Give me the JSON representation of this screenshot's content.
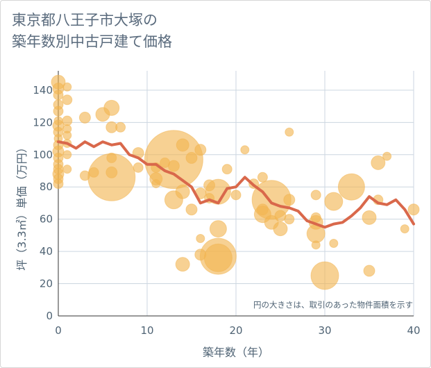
{
  "chart_data": {
    "type": "scatter",
    "title_lines": [
      "東京都八王子市大塚の",
      "築年数別中古戸建て価格"
    ],
    "xlabel": "築年数（年）",
    "ylabel": "坪（3.3㎡）単価（万円）",
    "xlim": [
      0,
      40
    ],
    "ylim": [
      0,
      152
    ],
    "x_ticks": [
      0,
      10,
      20,
      30,
      40
    ],
    "y_ticks": [
      0,
      20,
      40,
      60,
      80,
      100,
      120,
      140
    ],
    "grid": true,
    "note": "円の大きさは、取引のあった物件面積を示す",
    "colors": {
      "bubble": "#f2b450",
      "line": "#d9684b",
      "grid": "#ccd6e0",
      "text": "#4f6374"
    },
    "bubbles": [
      {
        "x": 0,
        "y": 145,
        "s": 10
      },
      {
        "x": 0,
        "y": 141,
        "s": 8
      },
      {
        "x": 0,
        "y": 137,
        "s": 7
      },
      {
        "x": 0,
        "y": 131,
        "s": 7
      },
      {
        "x": 0,
        "y": 127,
        "s": 7
      },
      {
        "x": 0,
        "y": 121,
        "s": 6
      },
      {
        "x": 0,
        "y": 118,
        "s": 8
      },
      {
        "x": 0,
        "y": 114,
        "s": 7
      },
      {
        "x": 0,
        "y": 110,
        "s": 6
      },
      {
        "x": 0,
        "y": 106,
        "s": 7
      },
      {
        "x": 0,
        "y": 102,
        "s": 8
      },
      {
        "x": 0,
        "y": 98,
        "s": 7
      },
      {
        "x": 0,
        "y": 94,
        "s": 7
      },
      {
        "x": 0,
        "y": 91,
        "s": 7
      },
      {
        "x": 0,
        "y": 88,
        "s": 8
      },
      {
        "x": 0,
        "y": 85,
        "s": 7
      },
      {
        "x": 0,
        "y": 82,
        "s": 7
      },
      {
        "x": 1,
        "y": 142,
        "s": 6
      },
      {
        "x": 1,
        "y": 134,
        "s": 7
      },
      {
        "x": 1,
        "y": 121,
        "s": 7
      },
      {
        "x": 1,
        "y": 116,
        "s": 6
      },
      {
        "x": 1,
        "y": 112,
        "s": 6
      },
      {
        "x": 1,
        "y": 107,
        "s": 6
      },
      {
        "x": 1,
        "y": 100,
        "s": 6
      },
      {
        "x": 1,
        "y": 91,
        "s": 6
      },
      {
        "x": 3,
        "y": 123,
        "s": 8
      },
      {
        "x": 3,
        "y": 87,
        "s": 7
      },
      {
        "x": 4,
        "y": 89,
        "s": 7
      },
      {
        "x": 5,
        "y": 125,
        "s": 10
      },
      {
        "x": 6,
        "y": 129,
        "s": 11
      },
      {
        "x": 6,
        "y": 117,
        "s": 8
      },
      {
        "x": 6,
        "y": 98,
        "s": 7
      },
      {
        "x": 6,
        "y": 89,
        "s": 8
      },
      {
        "x": 6,
        "y": 86,
        "s": 34
      },
      {
        "x": 7,
        "y": 117,
        "s": 7
      },
      {
        "x": 9,
        "y": 101,
        "s": 8
      },
      {
        "x": 9,
        "y": 92,
        "s": 7
      },
      {
        "x": 11,
        "y": 92,
        "s": 7
      },
      {
        "x": 11,
        "y": 85,
        "s": 9
      },
      {
        "x": 11,
        "y": 82,
        "s": 6
      },
      {
        "x": 12,
        "y": 95,
        "s": 7
      },
      {
        "x": 13,
        "y": 97,
        "s": 42
      },
      {
        "x": 13,
        "y": 93,
        "s": 8
      },
      {
        "x": 13,
        "y": 72,
        "s": 13
      },
      {
        "x": 14,
        "y": 106,
        "s": 9
      },
      {
        "x": 14,
        "y": 77,
        "s": 10
      },
      {
        "x": 14,
        "y": 32,
        "s": 10
      },
      {
        "x": 15,
        "y": 98,
        "s": 8
      },
      {
        "x": 15,
        "y": 66,
        "s": 8
      },
      {
        "x": 16,
        "y": 103,
        "s": 8
      },
      {
        "x": 16,
        "y": 76,
        "s": 8
      },
      {
        "x": 16,
        "y": 48,
        "s": 6
      },
      {
        "x": 16,
        "y": 38,
        "s": 8
      },
      {
        "x": 17,
        "y": 81,
        "s": 8
      },
      {
        "x": 17,
        "y": 73,
        "s": 7
      },
      {
        "x": 18,
        "y": 77,
        "s": 18
      },
      {
        "x": 18,
        "y": 54,
        "s": 12
      },
      {
        "x": 18,
        "y": 37,
        "s": 26
      },
      {
        "x": 18,
        "y": 36,
        "s": 20
      },
      {
        "x": 19,
        "y": 91,
        "s": 7
      },
      {
        "x": 20,
        "y": 75,
        "s": 7
      },
      {
        "x": 21,
        "y": 103,
        "s": 6
      },
      {
        "x": 22,
        "y": 82,
        "s": 7
      },
      {
        "x": 23,
        "y": 86,
        "s": 7
      },
      {
        "x": 23,
        "y": 66,
        "s": 8
      },
      {
        "x": 23,
        "y": 63,
        "s": 12
      },
      {
        "x": 24,
        "y": 72,
        "s": 28
      },
      {
        "x": 24,
        "y": 58,
        "s": 10
      },
      {
        "x": 25,
        "y": 62,
        "s": 8
      },
      {
        "x": 25,
        "y": 54,
        "s": 10
      },
      {
        "x": 26,
        "y": 114,
        "s": 6
      },
      {
        "x": 26,
        "y": 72,
        "s": 8
      },
      {
        "x": 26,
        "y": 60,
        "s": 7
      },
      {
        "x": 29,
        "y": 75,
        "s": 7
      },
      {
        "x": 29,
        "y": 61,
        "s": 7
      },
      {
        "x": 29,
        "y": 58,
        "s": 10
      },
      {
        "x": 29,
        "y": 51,
        "s": 13
      },
      {
        "x": 29,
        "y": 44,
        "s": 6
      },
      {
        "x": 30,
        "y": 25,
        "s": 20
      },
      {
        "x": 31,
        "y": 71,
        "s": 13
      },
      {
        "x": 31,
        "y": 45,
        "s": 6
      },
      {
        "x": 33,
        "y": 80,
        "s": 19
      },
      {
        "x": 35,
        "y": 61,
        "s": 10
      },
      {
        "x": 35,
        "y": 28,
        "s": 8
      },
      {
        "x": 36,
        "y": 95,
        "s": 10
      },
      {
        "x": 36,
        "y": 72,
        "s": 7
      },
      {
        "x": 37,
        "y": 99,
        "s": 6
      },
      {
        "x": 39,
        "y": 54,
        "s": 6
      },
      {
        "x": 40,
        "y": 66,
        "s": 8
      }
    ],
    "series": [
      {
        "x": [
          0,
          1,
          2,
          3,
          4,
          5,
          6,
          7,
          8,
          9,
          10,
          11,
          12,
          13,
          14,
          15,
          16,
          17,
          18,
          19,
          20,
          21,
          22,
          23,
          24,
          25,
          26,
          27,
          28,
          29,
          30,
          31,
          32,
          33,
          34,
          35,
          36,
          37,
          38,
          39,
          40
        ],
        "values": [
          108,
          107,
          104,
          108,
          105,
          108,
          106,
          107,
          100,
          98,
          94,
          94,
          90,
          88,
          84,
          80,
          70,
          72,
          70,
          79,
          80,
          86,
          81,
          77,
          70,
          68,
          67,
          65,
          59,
          57,
          55,
          57,
          58,
          62,
          67,
          74,
          70,
          69,
          72,
          66,
          57
        ]
      }
    ]
  }
}
